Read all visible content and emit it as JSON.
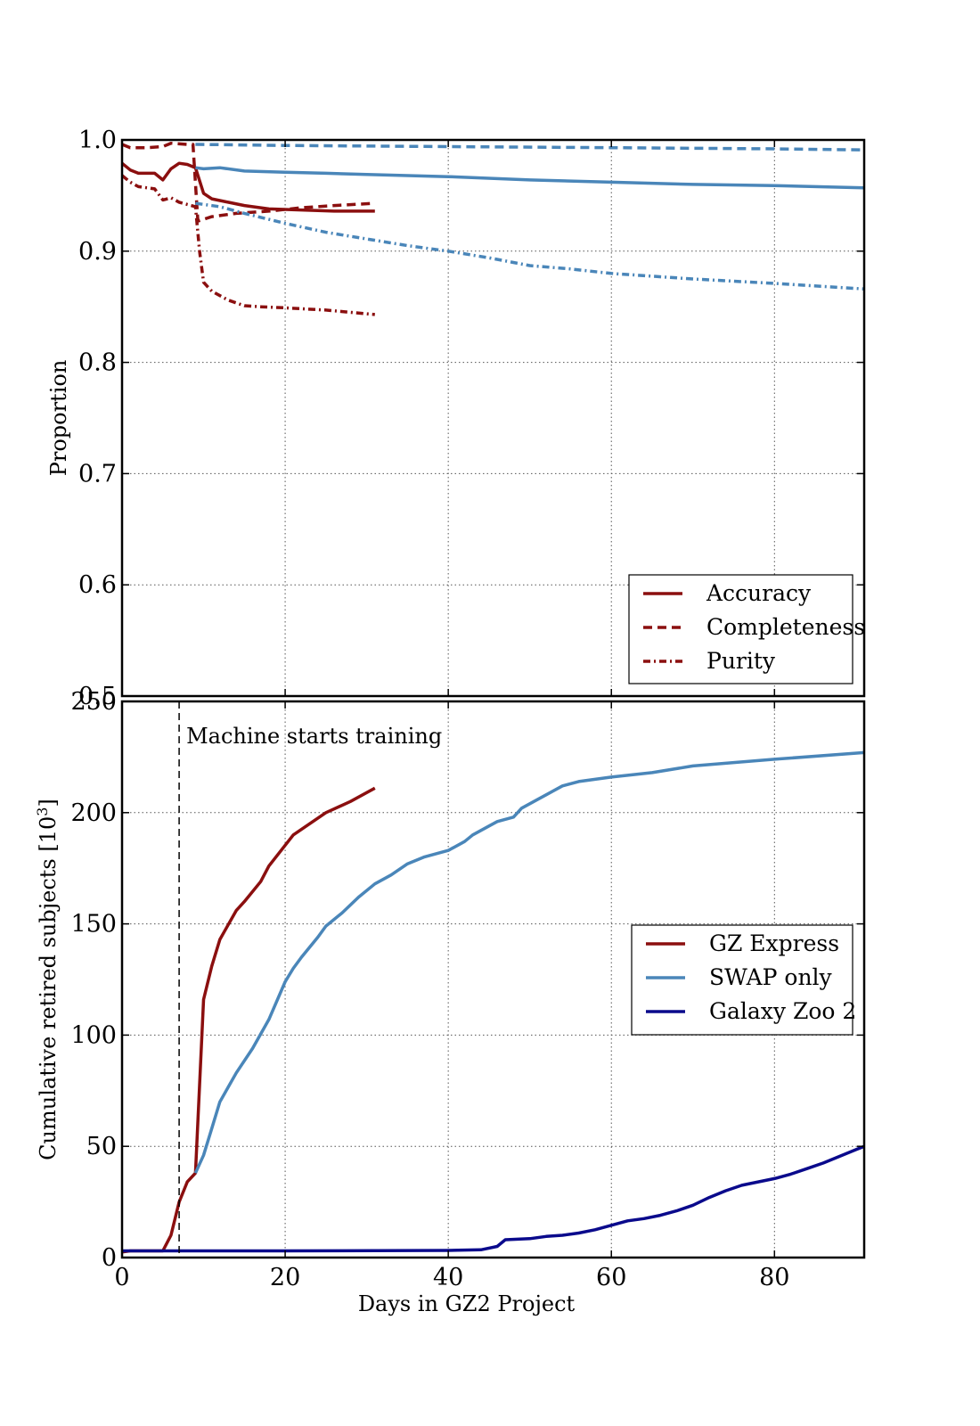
{
  "chart_data": [
    {
      "type": "line",
      "xlabel": "",
      "ylabel": "Proportion",
      "xlim": [
        0,
        91
      ],
      "ylim": [
        0.5,
        1.0
      ],
      "xticks": [
        0,
        20,
        40,
        60,
        80
      ],
      "yticks": [
        0.5,
        0.6,
        0.7,
        0.8,
        0.9,
        1.0
      ],
      "ytick_labels": [
        "0.5",
        "0.6",
        "0.7",
        "0.8",
        "0.9",
        "1.0"
      ],
      "grid": true,
      "legend_placement": "lower-right",
      "legend": [
        {
          "label": "Accuracy",
          "style": "solid"
        },
        {
          "label": "Completeness",
          "style": "dashed"
        },
        {
          "label": "Purity",
          "style": "dashdot"
        }
      ],
      "series": [
        {
          "metric": "Accuracy",
          "group": "GZ Express",
          "color": "#8b0f0f",
          "style": "solid",
          "points": [
            [
              0,
              0.979
            ],
            [
              1,
              0.973
            ],
            [
              2,
              0.97
            ],
            [
              4,
              0.97
            ],
            [
              5,
              0.964
            ],
            [
              6,
              0.974
            ],
            [
              7,
              0.979
            ],
            [
              8,
              0.978
            ],
            [
              9,
              0.975
            ],
            [
              10,
              0.952
            ],
            [
              11,
              0.947
            ],
            [
              13,
              0.944
            ],
            [
              15,
              0.941
            ],
            [
              18,
              0.938
            ],
            [
              22,
              0.937
            ],
            [
              26,
              0.936
            ],
            [
              31,
              0.936
            ]
          ]
        },
        {
          "metric": "Completeness",
          "group": "GZ Express",
          "color": "#8b0f0f",
          "style": "dashed",
          "points": [
            [
              0,
              0.996
            ],
            [
              1,
              0.993
            ],
            [
              3,
              0.993
            ],
            [
              5,
              0.994
            ],
            [
              6,
              0.997
            ],
            [
              8,
              0.996
            ],
            [
              8.7,
              0.996
            ],
            [
              9.3,
              0.927
            ],
            [
              11,
              0.931
            ],
            [
              14,
              0.934
            ],
            [
              18,
              0.936
            ],
            [
              22,
              0.939
            ],
            [
              26,
              0.941
            ],
            [
              31,
              0.943
            ]
          ]
        },
        {
          "metric": "Purity",
          "group": "GZ Express",
          "color": "#8b0f0f",
          "style": "dashdot",
          "points": [
            [
              0,
              0.968
            ],
            [
              1,
              0.962
            ],
            [
              2,
              0.958
            ],
            [
              4,
              0.956
            ],
            [
              5,
              0.946
            ],
            [
              6,
              0.948
            ],
            [
              7,
              0.944
            ],
            [
              8,
              0.942
            ],
            [
              9,
              0.94
            ],
            [
              9.5,
              0.9
            ],
            [
              10,
              0.872
            ],
            [
              11,
              0.864
            ],
            [
              13,
              0.856
            ],
            [
              15,
              0.851
            ],
            [
              17,
              0.85
            ],
            [
              20,
              0.849
            ],
            [
              25,
              0.847
            ],
            [
              31,
              0.843
            ]
          ]
        },
        {
          "metric": "Accuracy",
          "group": "SWAP only",
          "color": "#4a86b9",
          "style": "solid",
          "points": [
            [
              9,
              0.975
            ],
            [
              10,
              0.974
            ],
            [
              12,
              0.975
            ],
            [
              15,
              0.972
            ],
            [
              20,
              0.971
            ],
            [
              25,
              0.97
            ],
            [
              30,
              0.969
            ],
            [
              40,
              0.967
            ],
            [
              50,
              0.964
            ],
            [
              60,
              0.962
            ],
            [
              70,
              0.96
            ],
            [
              80,
              0.959
            ],
            [
              91,
              0.957
            ]
          ]
        },
        {
          "metric": "Completeness",
          "group": "SWAP only",
          "color": "#4a86b9",
          "style": "dashed",
          "points": [
            [
              9,
              0.996
            ],
            [
              20,
              0.995
            ],
            [
              40,
              0.994
            ],
            [
              60,
              0.993
            ],
            [
              80,
              0.992
            ],
            [
              91,
              0.991
            ]
          ]
        },
        {
          "metric": "Purity",
          "group": "SWAP only",
          "color": "#4a86b9",
          "style": "dashdot",
          "points": [
            [
              9,
              0.943
            ],
            [
              12,
              0.94
            ],
            [
              15,
              0.934
            ],
            [
              20,
              0.925
            ],
            [
              25,
              0.917
            ],
            [
              30,
              0.911
            ],
            [
              35,
              0.905
            ],
            [
              40,
              0.9
            ],
            [
              45,
              0.894
            ],
            [
              50,
              0.887
            ],
            [
              55,
              0.884
            ],
            [
              60,
              0.88
            ],
            [
              70,
              0.875
            ],
            [
              80,
              0.871
            ],
            [
              91,
              0.866
            ]
          ]
        }
      ]
    },
    {
      "type": "line",
      "xlabel": "Days in GZ2 Project",
      "ylabel": "Cumulative retired subjects [10",
      "ylabel_sup": "3",
      "ylabel_end": "]",
      "xlim": [
        0,
        91
      ],
      "ylim": [
        0,
        250
      ],
      "xticks": [
        0,
        20,
        40,
        60,
        80
      ],
      "xtick_labels": [
        "0",
        "20",
        "40",
        "60",
        "80"
      ],
      "yticks": [
        0,
        50,
        100,
        150,
        200,
        250
      ],
      "ytick_labels": [
        "0",
        "50",
        "100",
        "150",
        "200",
        "250"
      ],
      "grid": true,
      "legend_placement": "center-right",
      "annotation": {
        "text": "Machine starts training",
        "x": 7
      },
      "series": [
        {
          "name": "GZ Express",
          "color": "#8b0f0f",
          "points": [
            [
              0,
              2.5
            ],
            [
              1,
              3
            ],
            [
              5,
              3
            ],
            [
              6,
              10
            ],
            [
              7,
              25
            ],
            [
              8,
              34
            ],
            [
              9,
              38
            ],
            [
              10,
              116
            ],
            [
              11,
              131
            ],
            [
              12,
              143
            ],
            [
              14,
              156
            ],
            [
              15,
              160
            ],
            [
              17,
              169
            ],
            [
              18,
              176
            ],
            [
              21,
              190
            ],
            [
              25,
              200
            ],
            [
              28,
              205
            ],
            [
              31,
              211
            ]
          ]
        },
        {
          "name": "SWAP only",
          "color": "#4a86b9",
          "points": [
            [
              9,
              38
            ],
            [
              10,
              46
            ],
            [
              11,
              58
            ],
            [
              12,
              70
            ],
            [
              14,
              83
            ],
            [
              16,
              94
            ],
            [
              18,
              107
            ],
            [
              20,
              124
            ],
            [
              21,
              130
            ],
            [
              22,
              135
            ],
            [
              24,
              144
            ],
            [
              25,
              149
            ],
            [
              27,
              155
            ],
            [
              29,
              162
            ],
            [
              31,
              168
            ],
            [
              33,
              172
            ],
            [
              35,
              177
            ],
            [
              37,
              180
            ],
            [
              40,
              183
            ],
            [
              42,
              187
            ],
            [
              43,
              190
            ],
            [
              45,
              194
            ],
            [
              46,
              196
            ],
            [
              48,
              198
            ],
            [
              49,
              202
            ],
            [
              51,
              206
            ],
            [
              52,
              208
            ],
            [
              54,
              212
            ],
            [
              56,
              214
            ],
            [
              60,
              216
            ],
            [
              65,
              218
            ],
            [
              70,
              221
            ],
            [
              80,
              224
            ],
            [
              91,
              227
            ]
          ]
        },
        {
          "name": "Galaxy Zoo 2",
          "color": "#0a0a8c",
          "points": [
            [
              0,
              3
            ],
            [
              20,
              3
            ],
            [
              40,
              3.2
            ],
            [
              44,
              3.5
            ],
            [
              46,
              5
            ],
            [
              47,
              8
            ],
            [
              50,
              8.5
            ],
            [
              52,
              9.5
            ],
            [
              54,
              10
            ],
            [
              56,
              11
            ],
            [
              58,
              12.5
            ],
            [
              60,
              14.5
            ],
            [
              62,
              16.5
            ],
            [
              64,
              17.5
            ],
            [
              66,
              19
            ],
            [
              68,
              21
            ],
            [
              70,
              23.5
            ],
            [
              72,
              27
            ],
            [
              74,
              30
            ],
            [
              76,
              32.5
            ],
            [
              78,
              34
            ],
            [
              80,
              35.5
            ],
            [
              82,
              37.5
            ],
            [
              84,
              40
            ],
            [
              86,
              42.5
            ],
            [
              88,
              45.5
            ],
            [
              90,
              48.5
            ],
            [
              91,
              50
            ]
          ]
        }
      ]
    }
  ]
}
